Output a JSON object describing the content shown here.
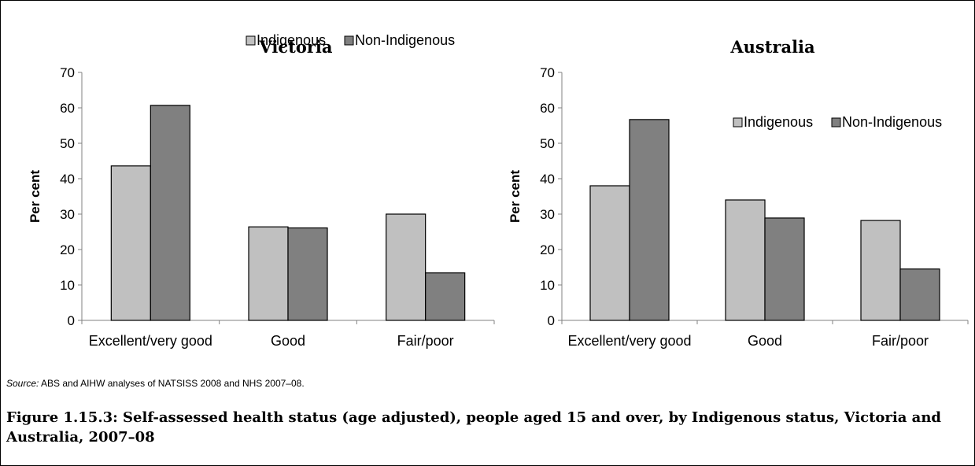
{
  "colors": {
    "indigenous": "#c0c0c0",
    "non_indigenous": "#808080"
  },
  "source": {
    "label": "Source:",
    "text": " ABS and AIHW analyses of NATSISS 2008 and NHS 2007–08."
  },
  "caption": "Figure 1.15.3: Self-assessed health status (age adjusted), people aged 15 and over, by Indigenous status, Victoria and Australia, 2007–08",
  "chart_data": [
    {
      "type": "bar",
      "title": "Victoria",
      "ylabel": "Per cent",
      "xlabel": "",
      "ylim": [
        0,
        70
      ],
      "yticks": [
        0,
        10,
        20,
        30,
        40,
        50,
        60,
        70
      ],
      "grid": false,
      "legend_position": "top-right",
      "categories": [
        "Excellent/very good",
        "Good",
        "Fair/poor"
      ],
      "series": [
        {
          "name": "Indigenous",
          "values": [
            43.6,
            26.4,
            30.0
          ]
        },
        {
          "name": "Non-Indigenous",
          "values": [
            60.7,
            26.1,
            13.4
          ]
        }
      ]
    },
    {
      "type": "bar",
      "title": "Australia",
      "ylabel": "Per cent",
      "xlabel": "",
      "ylim": [
        0,
        70
      ],
      "yticks": [
        0,
        10,
        20,
        30,
        40,
        50,
        60,
        70
      ],
      "grid": false,
      "legend_position": "top-right",
      "categories": [
        "Excellent/very good",
        "Good",
        "Fair/poor"
      ],
      "series": [
        {
          "name": "Indigenous",
          "values": [
            38.0,
            34.0,
            28.2
          ]
        },
        {
          "name": "Non-Indigenous",
          "values": [
            56.7,
            28.9,
            14.5
          ]
        }
      ]
    }
  ]
}
